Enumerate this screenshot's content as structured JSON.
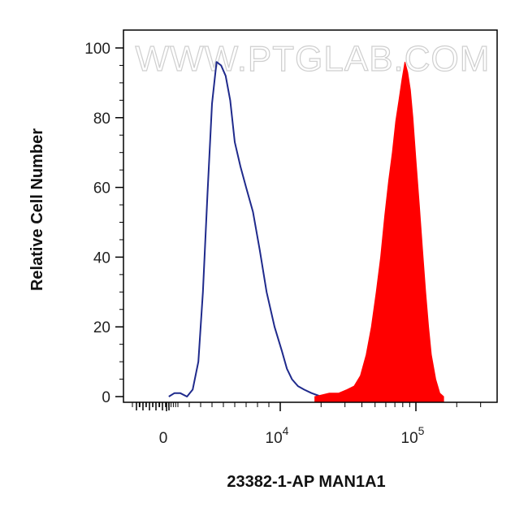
{
  "chart_data": {
    "type": "area",
    "xlabel": "23382-1-AP MAN1A1",
    "ylabel": "Relative Cell Number",
    "watermark": "WWW.PTGLAB.COM",
    "x_scale": "biexponential",
    "ylim": [
      0,
      100
    ],
    "y_ticks": [
      "0",
      "20",
      "40",
      "60",
      "80",
      "100"
    ],
    "x_ticks": [
      {
        "base": "0",
        "exp": ""
      },
      {
        "base": "10",
        "exp": "4"
      },
      {
        "base": "10",
        "exp": "5"
      }
    ],
    "grid": false,
    "legend": "none",
    "colors": {
      "control": "#1f2a8c",
      "sample": "#ff0000"
    },
    "series": [
      {
        "style": "line",
        "color": "#1f2a8c",
        "x": [
          200,
          700,
          1200,
          1800,
          2300,
          2800,
          3200,
          3600,
          4000,
          4400,
          4800,
          5200,
          5600,
          6000,
          6500,
          7000,
          7600,
          8200,
          8800,
          9500,
          10300,
          11200,
          12200,
          13500,
          15000,
          17000,
          20000,
          23000
        ],
        "y": [
          0,
          1,
          1,
          0,
          2,
          10,
          30,
          58,
          84,
          96,
          95,
          92,
          85,
          73,
          66,
          60,
          53,
          42,
          30,
          20,
          13,
          8,
          5,
          3,
          2,
          1,
          0,
          0
        ]
      },
      {
        "style": "filled",
        "color": "#ff0000",
        "x": [
          18000,
          23000,
          27000,
          31000,
          35000,
          39000,
          43000,
          47000,
          51000,
          55000,
          59000,
          63000,
          67000,
          71000,
          75000,
          79000,
          83000,
          87000,
          91000,
          95000,
          100000,
          106000,
          112000,
          118000,
          124000,
          130000,
          140000,
          150000,
          160000
        ],
        "y": [
          0,
          1,
          1,
          2,
          3,
          6,
          12,
          20,
          30,
          40,
          52,
          62,
          70,
          79,
          85,
          91,
          96,
          93,
          88,
          80,
          68,
          55,
          42,
          30,
          20,
          12,
          5,
          1,
          0
        ]
      }
    ]
  }
}
